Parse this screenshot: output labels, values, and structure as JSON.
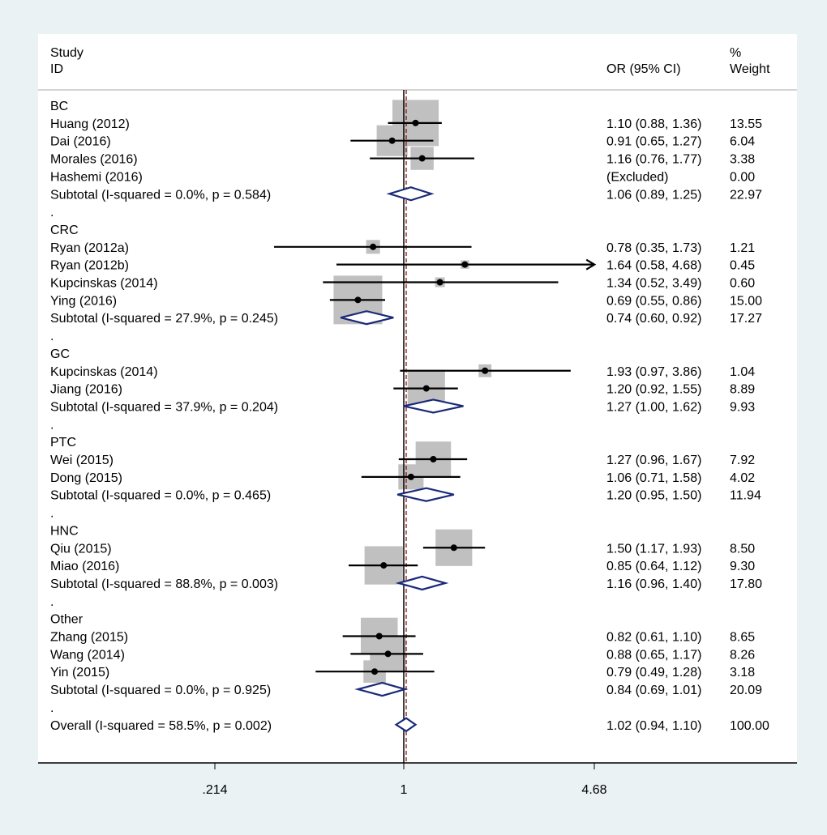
{
  "header": {
    "study_line1": "Study",
    "study_line2": "ID",
    "or_label": "OR (95% CI)",
    "weight_line1": "%",
    "weight_line2": "Weight"
  },
  "axis_ticks": [
    ".214",
    "1",
    "4.68"
  ],
  "colors": {
    "background": "#eaf2f3",
    "plot_bg": "#ffffff",
    "box": "#c0c0c0",
    "diamond": "#1a2a7a",
    "null_line": "#8b0000"
  },
  "chart_data": {
    "type": "forest",
    "x_scale": "log",
    "xlim": [
      0.214,
      4.68
    ],
    "null_value": 1,
    "overall_reference": 1.02,
    "rows": [
      {
        "kind": "group",
        "label": "BC"
      },
      {
        "kind": "study",
        "label": "Huang (2012)",
        "or": 1.1,
        "lo": 0.88,
        "hi": 1.36,
        "ci_text": "1.10 (0.88, 1.36)",
        "weight": 13.55,
        "weight_text": "13.55"
      },
      {
        "kind": "study",
        "label": "Dai (2016)",
        "or": 0.91,
        "lo": 0.65,
        "hi": 1.27,
        "ci_text": "0.91 (0.65, 1.27)",
        "weight": 6.04,
        "weight_text": "6.04"
      },
      {
        "kind": "study",
        "label": "Morales (2016)",
        "or": 1.16,
        "lo": 0.76,
        "hi": 1.77,
        "ci_text": "1.16 (0.76, 1.77)",
        "weight": 3.38,
        "weight_text": "3.38"
      },
      {
        "kind": "study",
        "label": "Hashemi (2016)",
        "or": null,
        "lo": null,
        "hi": null,
        "ci_text": "(Excluded)",
        "weight": 0,
        "weight_text": "0.00"
      },
      {
        "kind": "subtotal",
        "label": "Subtotal  (I-squared = 0.0%, p = 0.584)",
        "or": 1.06,
        "lo": 0.89,
        "hi": 1.25,
        "ci_text": "1.06 (0.89, 1.25)",
        "weight_text": "22.97"
      },
      {
        "kind": "dot",
        "label": "."
      },
      {
        "kind": "group",
        "label": "CRC"
      },
      {
        "kind": "study",
        "label": "Ryan (2012a)",
        "or": 0.78,
        "lo": 0.35,
        "hi": 1.73,
        "ci_text": "0.78 (0.35, 1.73)",
        "weight": 1.21,
        "weight_text": "1.21"
      },
      {
        "kind": "study",
        "label": "Ryan (2012b)",
        "or": 1.64,
        "lo": 0.58,
        "hi": 4.68,
        "ci_text": "1.64 (0.58, 4.68)",
        "weight": 0.45,
        "weight_text": "0.45",
        "arrow": true
      },
      {
        "kind": "study",
        "label": "Kupcinskas (2014)",
        "or": 1.34,
        "lo": 0.52,
        "hi": 3.49,
        "ci_text": "1.34 (0.52, 3.49)",
        "weight": 0.6,
        "weight_text": "0.60"
      },
      {
        "kind": "study",
        "label": "Ying (2016)",
        "or": 0.69,
        "lo": 0.55,
        "hi": 0.86,
        "ci_text": "0.69 (0.55, 0.86)",
        "weight": 15.0,
        "weight_text": "15.00"
      },
      {
        "kind": "subtotal",
        "label": "Subtotal  (I-squared = 27.9%, p = 0.245)",
        "or": 0.74,
        "lo": 0.6,
        "hi": 0.92,
        "ci_text": "0.74 (0.60, 0.92)",
        "weight_text": "17.27"
      },
      {
        "kind": "dot",
        "label": "."
      },
      {
        "kind": "group",
        "label": "GC"
      },
      {
        "kind": "study",
        "label": "Kupcinskas (2014)",
        "or": 1.93,
        "lo": 0.97,
        "hi": 3.86,
        "ci_text": "1.93 (0.97, 3.86)",
        "weight": 1.04,
        "weight_text": "1.04"
      },
      {
        "kind": "study",
        "label": "Jiang (2016)",
        "or": 1.2,
        "lo": 0.92,
        "hi": 1.55,
        "ci_text": "1.20 (0.92, 1.55)",
        "weight": 8.89,
        "weight_text": "8.89"
      },
      {
        "kind": "subtotal",
        "label": "Subtotal  (I-squared = 37.9%, p = 0.204)",
        "or": 1.27,
        "lo": 1.0,
        "hi": 1.62,
        "ci_text": "1.27 (1.00, 1.62)",
        "weight_text": "9.93"
      },
      {
        "kind": "dot",
        "label": "."
      },
      {
        "kind": "group",
        "label": "PTC"
      },
      {
        "kind": "study",
        "label": "Wei (2015)",
        "or": 1.27,
        "lo": 0.96,
        "hi": 1.67,
        "ci_text": "1.27 (0.96, 1.67)",
        "weight": 7.92,
        "weight_text": "7.92"
      },
      {
        "kind": "study",
        "label": "Dong (2015)",
        "or": 1.06,
        "lo": 0.71,
        "hi": 1.58,
        "ci_text": "1.06 (0.71, 1.58)",
        "weight": 4.02,
        "weight_text": "4.02"
      },
      {
        "kind": "subtotal",
        "label": "Subtotal  (I-squared = 0.0%, p = 0.465)",
        "or": 1.2,
        "lo": 0.95,
        "hi": 1.5,
        "ci_text": "1.20 (0.95, 1.50)",
        "weight_text": "11.94"
      },
      {
        "kind": "dot",
        "label": "."
      },
      {
        "kind": "group",
        "label": "HNC"
      },
      {
        "kind": "study",
        "label": "Qiu (2015)",
        "or": 1.5,
        "lo": 1.17,
        "hi": 1.93,
        "ci_text": "1.50 (1.17, 1.93)",
        "weight": 8.5,
        "weight_text": "8.50"
      },
      {
        "kind": "study",
        "label": "Miao (2016)",
        "or": 0.85,
        "lo": 0.64,
        "hi": 1.12,
        "ci_text": "0.85 (0.64, 1.12)",
        "weight": 9.3,
        "weight_text": "9.30"
      },
      {
        "kind": "subtotal",
        "label": "Subtotal  (I-squared = 88.8%, p = 0.003)",
        "or": 1.16,
        "lo": 0.96,
        "hi": 1.4,
        "ci_text": "1.16 (0.96, 1.40)",
        "weight_text": "17.80"
      },
      {
        "kind": "dot",
        "label": "."
      },
      {
        "kind": "group",
        "label": "Other"
      },
      {
        "kind": "study",
        "label": "Zhang (2015)",
        "or": 0.82,
        "lo": 0.61,
        "hi": 1.1,
        "ci_text": "0.82 (0.61, 1.10)",
        "weight": 8.65,
        "weight_text": "8.65"
      },
      {
        "kind": "study",
        "label": "Wang (2014)",
        "or": 0.88,
        "lo": 0.65,
        "hi": 1.17,
        "ci_text": "0.88 (0.65, 1.17)",
        "weight": 8.26,
        "weight_text": "8.26"
      },
      {
        "kind": "study",
        "label": "Yin (2015)",
        "or": 0.79,
        "lo": 0.49,
        "hi": 1.28,
        "ci_text": "0.79 (0.49, 1.28)",
        "weight": 3.18,
        "weight_text": "3.18"
      },
      {
        "kind": "subtotal",
        "label": "Subtotal  (I-squared = 0.0%, p = 0.925)",
        "or": 0.84,
        "lo": 0.69,
        "hi": 1.01,
        "ci_text": "0.84 (0.69, 1.01)",
        "weight_text": "20.09"
      },
      {
        "kind": "dot",
        "label": "."
      },
      {
        "kind": "overall",
        "label": "Overall  (I-squared = 58.5%, p = 0.002)",
        "or": 1.02,
        "lo": 0.94,
        "hi": 1.1,
        "ci_text": "1.02 (0.94, 1.10)",
        "weight_text": "100.00"
      }
    ]
  }
}
